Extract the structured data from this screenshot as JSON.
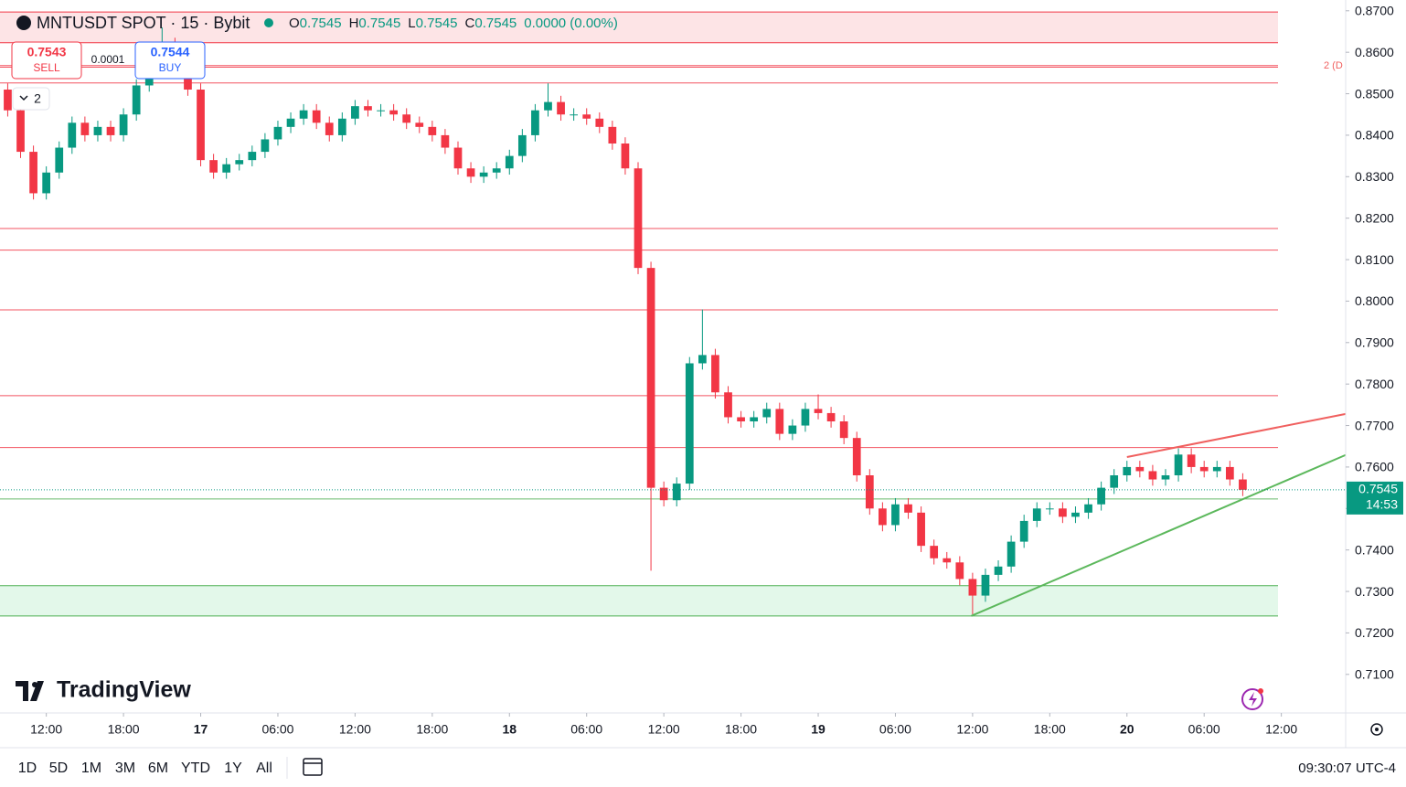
{
  "ui": {
    "symbol": "MNTUSDT SPOT · 15 · Bybit",
    "legend": [
      [
        "O",
        "0.7545"
      ],
      [
        "H",
        "0.7545"
      ],
      [
        "L",
        "0.7545"
      ],
      [
        "C",
        "0.7545"
      ]
    ],
    "change": "0.0000 (0.00%)",
    "sell_price": "0.7543",
    "sell": "SELL",
    "spread": "0.0001",
    "buy_price": "0.7544",
    "buy": "BUY",
    "indicators_count": "2",
    "drawing_label": "2 (D",
    "logo": "TradingView",
    "ranges": [
      "1D",
      "5D",
      "1M",
      "3M",
      "6M",
      "YTD",
      "1Y",
      "All"
    ],
    "clock": "09:30:07 UTC-4"
  },
  "chart_data": {
    "type": "candlestick",
    "up_color": "#089981",
    "down_color": "#f23645",
    "x": [
      9,
      10,
      11,
      12,
      13,
      14,
      15,
      16,
      17,
      18,
      19,
      20,
      21,
      22,
      23,
      24,
      25,
      26,
      27,
      28,
      29,
      30,
      31,
      32,
      33,
      34,
      35,
      36,
      37,
      38,
      39,
      40,
      41,
      42,
      43,
      44,
      45,
      46,
      47,
      48,
      49,
      50,
      51,
      52,
      53,
      54,
      55,
      56,
      57,
      58,
      59,
      60,
      61,
      62,
      63,
      64,
      65,
      66,
      67,
      68,
      69,
      70,
      71,
      72,
      73,
      74,
      75,
      76,
      77,
      78,
      79,
      80,
      81,
      82,
      83,
      84,
      85,
      86,
      87,
      88,
      89,
      90,
      91,
      92,
      93,
      94,
      95,
      96,
      97,
      98,
      99,
      100,
      101,
      102,
      103,
      104,
      105
    ],
    "open": [
      0.851,
      0.846,
      0.836,
      0.826,
      0.831,
      0.837,
      0.843,
      0.84,
      0.842,
      0.84,
      0.845,
      0.852,
      0.858,
      0.862,
      0.856,
      0.851,
      0.834,
      0.831,
      0.833,
      0.834,
      0.836,
      0.839,
      0.842,
      0.844,
      0.846,
      0.843,
      0.84,
      0.844,
      0.847,
      0.846,
      0.846,
      0.845,
      0.843,
      0.842,
      0.84,
      0.837,
      0.832,
      0.83,
      0.831,
      0.832,
      0.835,
      0.84,
      0.846,
      0.848,
      0.845,
      0.845,
      0.844,
      0.842,
      0.838,
      0.832,
      0.808,
      0.755,
      0.752,
      0.756,
      0.785,
      0.787,
      0.778,
      0.772,
      0.771,
      0.772,
      0.774,
      0.768,
      0.77,
      0.774,
      0.773,
      0.771,
      0.767,
      0.758,
      0.75,
      0.746,
      0.751,
      0.749,
      0.741,
      0.738,
      0.737,
      0.733,
      0.729,
      0.734,
      0.736,
      0.742,
      0.747,
      0.75,
      0.75,
      0.748,
      0.749,
      0.751,
      0.755,
      0.758,
      0.76,
      0.759,
      0.757,
      0.758,
      0.763,
      0.76,
      0.759,
      0.76,
      0.757
    ],
    "high": [
      0.8525,
      0.8475,
      0.8375,
      0.8325,
      0.8385,
      0.8445,
      0.8445,
      0.8435,
      0.8435,
      0.8465,
      0.8535,
      0.8595,
      0.866,
      0.8635,
      0.8575,
      0.8525,
      0.8355,
      0.8345,
      0.8355,
      0.8375,
      0.8405,
      0.8435,
      0.8455,
      0.8475,
      0.8475,
      0.8445,
      0.8455,
      0.8485,
      0.8485,
      0.8475,
      0.8475,
      0.8465,
      0.8445,
      0.8435,
      0.8415,
      0.8385,
      0.8335,
      0.8325,
      0.8335,
      0.8365,
      0.8415,
      0.8475,
      0.8525,
      0.8495,
      0.8465,
      0.8465,
      0.8455,
      0.8435,
      0.8395,
      0.8335,
      0.8095,
      0.7565,
      0.7575,
      0.7865,
      0.798,
      0.7885,
      0.7795,
      0.7735,
      0.7735,
      0.7755,
      0.7755,
      0.7715,
      0.7755,
      0.7775,
      0.7745,
      0.7725,
      0.7685,
      0.7595,
      0.7515,
      0.7525,
      0.7525,
      0.7505,
      0.7425,
      0.7395,
      0.7385,
      0.7345,
      0.7355,
      0.7375,
      0.7435,
      0.7485,
      0.7515,
      0.7515,
      0.7515,
      0.7505,
      0.7525,
      0.7565,
      0.7595,
      0.7615,
      0.7615,
      0.7605,
      0.7595,
      0.7645,
      0.7645,
      0.7615,
      0.7615,
      0.7615,
      0.7585
    ],
    "low": [
      0.8445,
      0.8345,
      0.8245,
      0.8245,
      0.8295,
      0.8355,
      0.8385,
      0.8385,
      0.8385,
      0.8385,
      0.8435,
      0.8505,
      0.8565,
      0.8545,
      0.8495,
      0.8325,
      0.8295,
      0.8295,
      0.8315,
      0.8325,
      0.8345,
      0.8375,
      0.8405,
      0.8425,
      0.8415,
      0.8385,
      0.8385,
      0.8425,
      0.8445,
      0.8445,
      0.8435,
      0.8415,
      0.8405,
      0.8385,
      0.8355,
      0.8305,
      0.8285,
      0.8285,
      0.8295,
      0.8305,
      0.8335,
      0.8385,
      0.8445,
      0.8435,
      0.8435,
      0.8425,
      0.8405,
      0.8365,
      0.8305,
      0.8065,
      0.735,
      0.7505,
      0.7505,
      0.7545,
      0.7835,
      0.7765,
      0.7705,
      0.7695,
      0.7695,
      0.7705,
      0.7665,
      0.7665,
      0.7685,
      0.7715,
      0.7695,
      0.7655,
      0.7565,
      0.7485,
      0.7445,
      0.7445,
      0.7475,
      0.7395,
      0.7365,
      0.7355,
      0.7315,
      0.7245,
      0.7275,
      0.7325,
      0.7345,
      0.7405,
      0.7455,
      0.7485,
      0.7465,
      0.7465,
      0.7475,
      0.7495,
      0.7535,
      0.7565,
      0.7575,
      0.7555,
      0.7555,
      0.7565,
      0.7585,
      0.7575,
      0.7575,
      0.7555,
      0.753
    ],
    "close": [
      0.846,
      0.836,
      0.826,
      0.831,
      0.837,
      0.843,
      0.84,
      0.842,
      0.84,
      0.845,
      0.852,
      0.858,
      0.862,
      0.856,
      0.851,
      0.834,
      0.831,
      0.833,
      0.834,
      0.836,
      0.839,
      0.842,
      0.844,
      0.846,
      0.843,
      0.84,
      0.844,
      0.847,
      0.846,
      0.846,
      0.845,
      0.843,
      0.842,
      0.84,
      0.837,
      0.832,
      0.83,
      0.831,
      0.832,
      0.835,
      0.84,
      0.846,
      0.848,
      0.845,
      0.845,
      0.844,
      0.842,
      0.838,
      0.832,
      0.808,
      0.755,
      0.752,
      0.756,
      0.785,
      0.787,
      0.778,
      0.772,
      0.771,
      0.772,
      0.774,
      0.768,
      0.77,
      0.774,
      0.773,
      0.771,
      0.767,
      0.758,
      0.75,
      0.746,
      0.751,
      0.749,
      0.741,
      0.738,
      0.737,
      0.733,
      0.729,
      0.734,
      0.736,
      0.742,
      0.747,
      0.75,
      0.75,
      0.748,
      0.749,
      0.751,
      0.755,
      0.758,
      0.76,
      0.759,
      0.757,
      0.758,
      0.763,
      0.76,
      0.759,
      0.76,
      0.757,
      0.7545
    ],
    "xlim": [
      8.4,
      113
    ],
    "ylim": [
      0.7007,
      0.8726
    ],
    "xticks": [
      {
        "value": 12,
        "label": "12:00"
      },
      {
        "value": 18,
        "label": "18:00"
      },
      {
        "value": 24,
        "label": "17"
      },
      {
        "value": 30,
        "label": "06:00"
      },
      {
        "value": 36,
        "label": "12:00"
      },
      {
        "value": 42,
        "label": "18:00"
      },
      {
        "value": 48,
        "label": "18"
      },
      {
        "value": 54,
        "label": "06:00"
      },
      {
        "value": 60,
        "label": "12:00"
      },
      {
        "value": 66,
        "label": "18:00"
      },
      {
        "value": 72,
        "label": "19"
      },
      {
        "value": 78,
        "label": "06:00"
      },
      {
        "value": 84,
        "label": "12:00"
      },
      {
        "value": 90,
        "label": "18:00"
      },
      {
        "value": 96,
        "label": "20"
      },
      {
        "value": 102,
        "label": "06:00"
      },
      {
        "value": 108,
        "label": "12:00"
      }
    ],
    "yticks": [
      {
        "value": 0.87,
        "label": "0.8700"
      },
      {
        "value": 0.86,
        "label": "0.8600"
      },
      {
        "value": 0.85,
        "label": "0.8500"
      },
      {
        "value": 0.84,
        "label": "0.8400"
      },
      {
        "value": 0.83,
        "label": "0.8300"
      },
      {
        "value": 0.82,
        "label": "0.8200"
      },
      {
        "value": 0.81,
        "label": "0.8100"
      },
      {
        "value": 0.8,
        "label": "0.8000"
      },
      {
        "value": 0.79,
        "label": "0.7900"
      },
      {
        "value": 0.78,
        "label": "0.7800"
      },
      {
        "value": 0.77,
        "label": "0.7700"
      },
      {
        "value": 0.76,
        "label": "0.7600"
      },
      {
        "value": 0.75,
        "label": "0.7500"
      },
      {
        "value": 0.74,
        "label": "0.7400"
      },
      {
        "value": 0.73,
        "label": "0.7300"
      },
      {
        "value": 0.72,
        "label": "0.7200"
      },
      {
        "value": 0.71,
        "label": "0.7100"
      }
    ],
    "levels": [
      {
        "value": 0.8568,
        "color": "#f23645"
      },
      {
        "value": 0.8564,
        "color": "#f23645"
      },
      {
        "value": 0.8526,
        "color": "#f23645"
      },
      {
        "value": 0.8175,
        "color": "#f23645"
      },
      {
        "value": 0.8123,
        "color": "#f23645"
      },
      {
        "value": 0.7979,
        "color": "#f23645"
      },
      {
        "value": 0.7772,
        "color": "#f23645"
      },
      {
        "value": 0.7647,
        "color": "#f23645"
      },
      {
        "value": 0.7523,
        "color": "#4caf50"
      }
    ],
    "zones": [
      {
        "range": [
          0.8623,
          0.8697
        ],
        "color": "#fde4e6",
        "edge": "#f23645"
      },
      {
        "range": [
          0.7241,
          0.7314
        ],
        "color": "#e3f8ea",
        "edge": "#4caf50"
      }
    ],
    "trendlines": [
      {
        "x": [
          96,
          113
        ],
        "y": [
          0.7624,
          0.7728
        ],
        "color": "#f0605f"
      },
      {
        "x": [
          83.9,
          113
        ],
        "y": [
          0.7241,
          0.7629
        ],
        "color": "#5cb85c"
      }
    ],
    "last_price": 0.7545,
    "countdown": "14:53"
  }
}
